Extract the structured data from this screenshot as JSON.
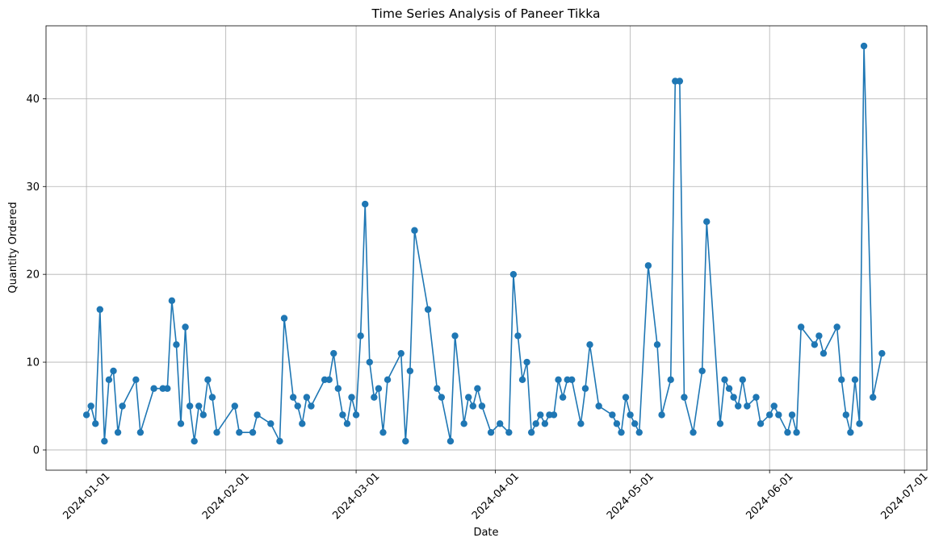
{
  "chart_data": {
    "type": "line",
    "title": "Time Series Analysis of Paneer Tikka",
    "xlabel": "Date",
    "ylabel": "Quantity Ordered",
    "color": "#1f77b4",
    "grid": true,
    "marker": "o",
    "x": [
      "2024-01-01",
      "2024-01-02",
      "2024-01-03",
      "2024-01-04",
      "2024-01-05",
      "2024-01-06",
      "2024-01-07",
      "2024-01-08",
      "2024-01-09",
      "2024-01-12",
      "2024-01-13",
      "2024-01-16",
      "2024-01-18",
      "2024-01-19",
      "2024-01-20",
      "2024-01-21",
      "2024-01-22",
      "2024-01-23",
      "2024-01-24",
      "2024-01-25",
      "2024-01-26",
      "2024-01-27",
      "2024-01-28",
      "2024-01-29",
      "2024-01-30",
      "2024-02-03",
      "2024-02-04",
      "2024-02-07",
      "2024-02-08",
      "2024-02-11",
      "2024-02-13",
      "2024-02-14",
      "2024-02-16",
      "2024-02-17",
      "2024-02-18",
      "2024-02-19",
      "2024-02-20",
      "2024-02-23",
      "2024-02-24",
      "2024-02-25",
      "2024-02-26",
      "2024-02-27",
      "2024-02-28",
      "2024-02-29",
      "2024-03-01",
      "2024-03-02",
      "2024-03-03",
      "2024-03-04",
      "2024-03-05",
      "2024-03-06",
      "2024-03-07",
      "2024-03-08",
      "2024-03-11",
      "2024-03-12",
      "2024-03-13",
      "2024-03-14",
      "2024-03-17",
      "2024-03-19",
      "2024-03-20",
      "2024-03-22",
      "2024-03-23",
      "2024-03-25",
      "2024-03-26",
      "2024-03-27",
      "2024-03-28",
      "2024-03-29",
      "2024-03-31",
      "2024-04-02",
      "2024-04-04",
      "2024-04-05",
      "2024-04-06",
      "2024-04-07",
      "2024-04-08",
      "2024-04-09",
      "2024-04-10",
      "2024-04-11",
      "2024-04-12",
      "2024-04-13",
      "2024-04-14",
      "2024-04-15",
      "2024-04-16",
      "2024-04-17",
      "2024-04-18",
      "2024-04-20",
      "2024-04-21",
      "2024-04-22",
      "2024-04-24",
      "2024-04-27",
      "2024-04-28",
      "2024-04-29",
      "2024-04-30",
      "2024-05-01",
      "2024-05-02",
      "2024-05-03",
      "2024-05-05",
      "2024-05-07",
      "2024-05-08",
      "2024-05-10",
      "2024-05-11",
      "2024-05-12",
      "2024-05-13",
      "2024-05-15",
      "2024-05-17",
      "2024-05-18",
      "2024-05-21",
      "2024-05-22",
      "2024-05-23",
      "2024-05-24",
      "2024-05-25",
      "2024-05-26",
      "2024-05-27",
      "2024-05-29",
      "2024-05-30",
      "2024-06-01",
      "2024-06-02",
      "2024-06-03",
      "2024-06-05",
      "2024-06-06",
      "2024-06-07",
      "2024-06-08",
      "2024-06-11",
      "2024-06-12",
      "2024-06-13",
      "2024-06-16",
      "2024-06-17",
      "2024-06-18",
      "2024-06-19",
      "2024-06-20",
      "2024-06-21",
      "2024-06-22",
      "2024-06-24",
      "2024-06-26"
    ],
    "values": [
      4,
      5,
      3,
      16,
      1,
      8,
      9,
      2,
      5,
      8,
      2,
      7,
      7,
      7,
      17,
      12,
      3,
      14,
      5,
      1,
      5,
      4,
      8,
      6,
      2,
      5,
      2,
      2,
      4,
      3,
      1,
      15,
      6,
      5,
      3,
      6,
      5,
      8,
      8,
      11,
      7,
      4,
      3,
      6,
      4,
      13,
      28,
      10,
      6,
      7,
      2,
      8,
      11,
      1,
      9,
      25,
      16,
      7,
      6,
      1,
      13,
      3,
      6,
      5,
      7,
      5,
      2,
      3,
      2,
      20,
      13,
      8,
      10,
      2,
      3,
      4,
      3,
      4,
      4,
      8,
      6,
      8,
      8,
      3,
      7,
      12,
      5,
      4,
      3,
      2,
      6,
      4,
      3,
      2,
      21,
      12,
      4,
      8,
      42,
      42,
      6,
      2,
      9,
      26,
      3,
      8,
      7,
      6,
      5,
      8,
      5,
      6,
      3,
      4,
      5,
      4,
      2,
      4,
      2,
      14,
      12,
      13,
      11,
      14,
      8,
      4,
      2,
      8,
      3,
      46,
      6,
      11
    ],
    "xlim": [
      "2023-12-23",
      "2024-07-06"
    ],
    "xticks": [
      "2024-01-01",
      "2024-02-01",
      "2024-03-01",
      "2024-04-01",
      "2024-05-01",
      "2024-06-01",
      "2024-07-01"
    ],
    "ylim": [
      -2.3,
      48.3
    ],
    "yticks": [
      0,
      10,
      20,
      30,
      40
    ]
  }
}
